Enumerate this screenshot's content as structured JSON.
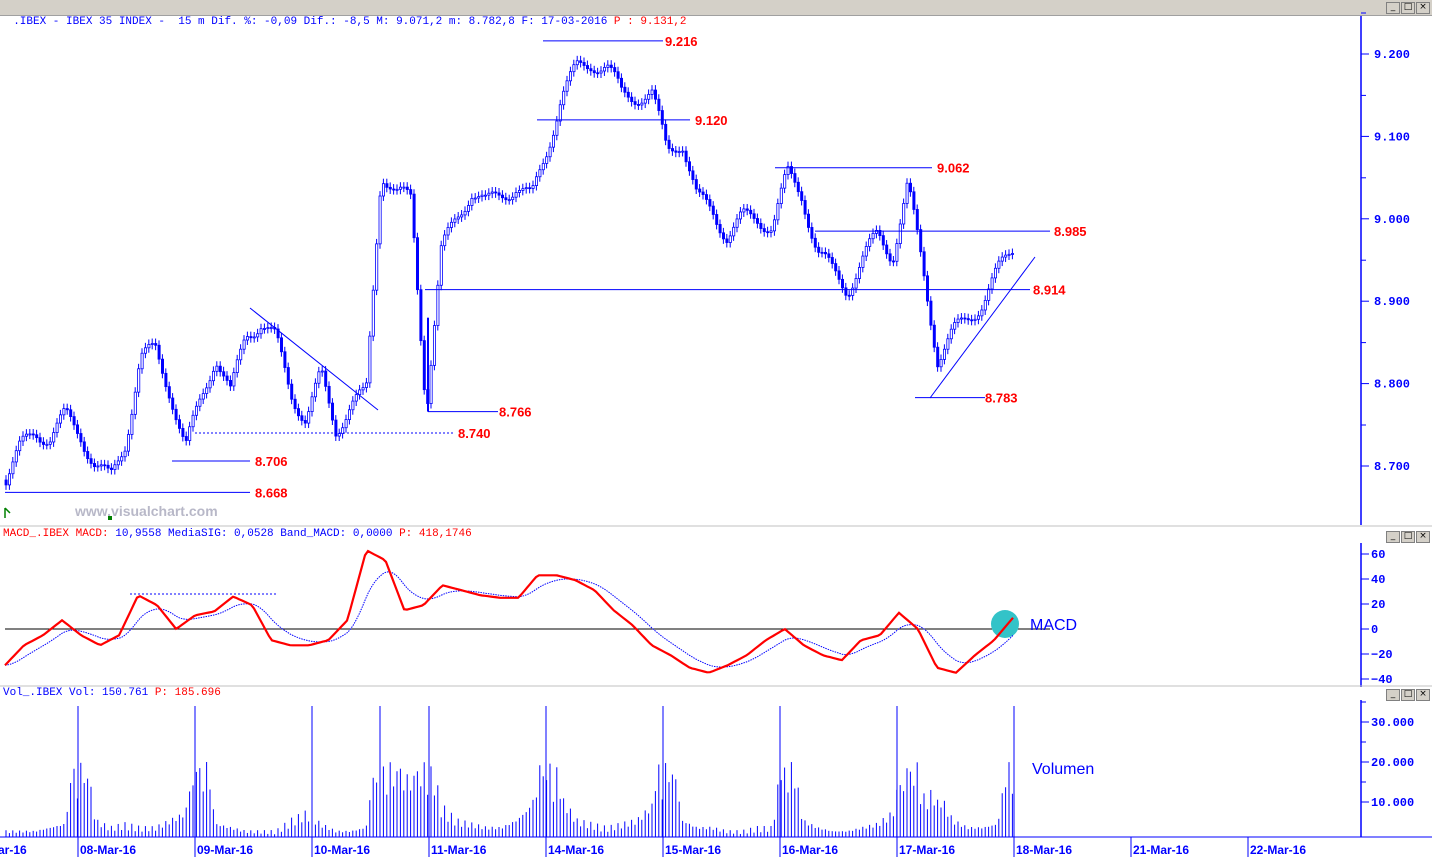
{
  "header": {
    "symbol": ".IBEX - IBEX 35 INDEX -  15 m",
    "stats": " Dif. %: -0,09 Dif.: -8,5 M: 9.071,2 m: 8.782,8 F: 17-03-2016",
    "price": " P : 9.131,2"
  },
  "macd_header": {
    "name": "MACD_.IBEX",
    "macd_label": " MACD:",
    "values": " 10,9558 MediaSIG: 0,0528 Band_MACD: 0,0000",
    "p": " P: 418,1746"
  },
  "vol_header": {
    "name": "Vol_.IBEX Vol: 150.761",
    "p": " P: 185.696"
  },
  "window_buttons": [
    "_",
    "□",
    "×"
  ],
  "watermark": "www.visualchart.com",
  "colors": {
    "price": "#0000ff",
    "macd": "#ff0000",
    "signal": "#0000ff",
    "levels": "#ff0000",
    "highlight": "#33c3c8"
  },
  "chart_data": [
    {
      "type": "line",
      "panel": "price",
      "interval": "15 m",
      "yticks": [
        "9.200",
        "9.100",
        "9.000",
        "8.900",
        "8.800",
        "8.700"
      ],
      "ylim": [
        8.645,
        9.24
      ],
      "xticks": [
        "ar-16",
        "08-Mar-16",
        "09-Mar-16",
        "10-Mar-16",
        "11-Mar-16",
        "14-Mar-16",
        "15-Mar-16",
        "16-Mar-16",
        "17-Mar-16",
        "18-Mar-16",
        "21-Mar-16",
        "22-Mar-16"
      ],
      "close": [
        8.683,
        8.72,
        8.742,
        8.735,
        8.76,
        8.74,
        8.7,
        8.683,
        8.73,
        8.83,
        8.84,
        8.79,
        8.72,
        8.78,
        8.835,
        8.786,
        8.86,
        8.875,
        8.853,
        8.79,
        8.756,
        8.81,
        8.745,
        8.774,
        8.786,
        9.059,
        9.03,
        9.023,
        8.77,
        8.96,
        9.0,
        9.035,
        9.017,
        9.03,
        9.04,
        9.023,
        9.083,
        9.15,
        9.181,
        9.19,
        9.185,
        9.15,
        9.15,
        9.15,
        9.083,
        9.096,
        9.023,
        9.01,
        8.98,
        9.0,
        9.0,
        8.992,
        9.053,
        9.029,
        8.96,
        8.935,
        8.915,
        8.95,
        8.98,
        8.956,
        9.04,
        8.94,
        8.83,
        8.86,
        8.88,
        8.9,
        8.935,
        8.965
      ],
      "levels": [
        "9.216",
        "9.120",
        "9.062",
        "8.985",
        "8.914",
        "8.783",
        "8.766",
        "8.740",
        "8.706",
        "8.668"
      ]
    },
    {
      "type": "line",
      "panel": "macd",
      "yticks": [
        "60",
        "40",
        "20",
        "0",
        "−20",
        "−40"
      ],
      "ylim": [
        -47,
        68
      ],
      "label": "MACD",
      "macd": [
        -29,
        -13,
        -5,
        7,
        -5,
        -13,
        -5,
        27,
        19,
        0,
        11,
        14,
        26,
        19,
        -9,
        -13,
        -13,
        -9,
        7,
        63,
        55,
        15,
        19,
        35,
        31,
        27,
        25,
        25,
        43,
        43,
        39,
        31,
        15,
        3,
        -13,
        -21,
        -31,
        -35,
        -29,
        -21,
        -9,
        0,
        -13,
        -21,
        -25,
        -9,
        -5,
        13,
        0,
        -31,
        -35,
        -21,
        -9,
        9
      ]
    },
    {
      "type": "bar",
      "panel": "volume",
      "yticks": [
        "30.000",
        "20.000",
        "10.000"
      ],
      "ylim": [
        0,
        35000
      ],
      "label": "Volumen",
      "volume": [
        3000,
        3000,
        3000,
        4000,
        5000,
        35000,
        6000,
        4000,
        5000,
        4000,
        4000,
        6000,
        8000,
        35000,
        5000,
        4000,
        3000,
        3000,
        3000,
        6000,
        8000,
        5000,
        3000,
        3000,
        4000,
        35000,
        25000,
        22000,
        28000,
        10000,
        6000,
        5000,
        4000,
        4000,
        6000,
        10000,
        35000,
        12000,
        6000,
        5000,
        4000,
        5000,
        6000,
        10000,
        35000,
        6000,
        4000,
        4000,
        3000,
        3000,
        4000,
        4000,
        35000,
        6000,
        4000,
        3000,
        3000,
        4000,
        5000,
        8000,
        35000,
        12000,
        14000,
        6000,
        4000,
        4000,
        5000,
        35000
      ]
    }
  ]
}
